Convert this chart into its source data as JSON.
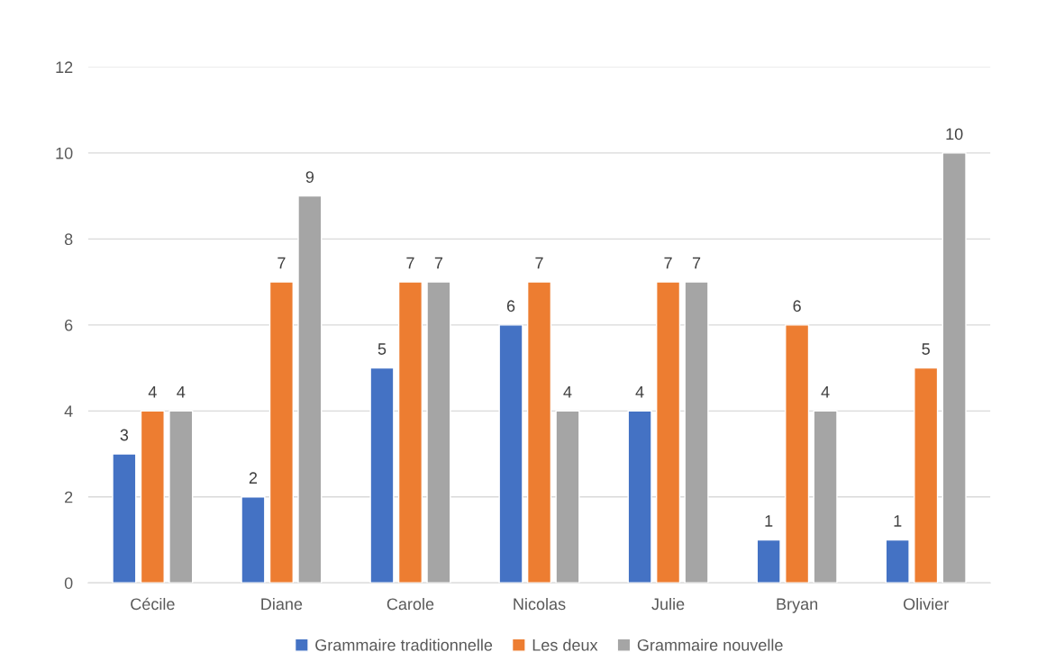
{
  "chart_data": {
    "type": "bar",
    "categories": [
      "Cécile",
      "Diane",
      "Carole",
      "Nicolas",
      "Julie",
      "Bryan",
      "Olivier"
    ],
    "series": [
      {
        "name": "Grammaire traditionnelle",
        "color": "#4472c4",
        "values": [
          3,
          2,
          5,
          6,
          4,
          1,
          1
        ]
      },
      {
        "name": "Les deux",
        "color": "#ed7d31",
        "values": [
          4,
          7,
          7,
          7,
          7,
          6,
          5
        ]
      },
      {
        "name": "Grammaire nouvelle",
        "color": "#a5a5a5",
        "values": [
          4,
          9,
          7,
          4,
          7,
          4,
          10
        ]
      }
    ],
    "ylim": [
      0,
      12
    ],
    "yticks": [
      0,
      2,
      4,
      6,
      8,
      10,
      12
    ],
    "grid": "y",
    "legend": "bottom",
    "data_labels": true
  }
}
